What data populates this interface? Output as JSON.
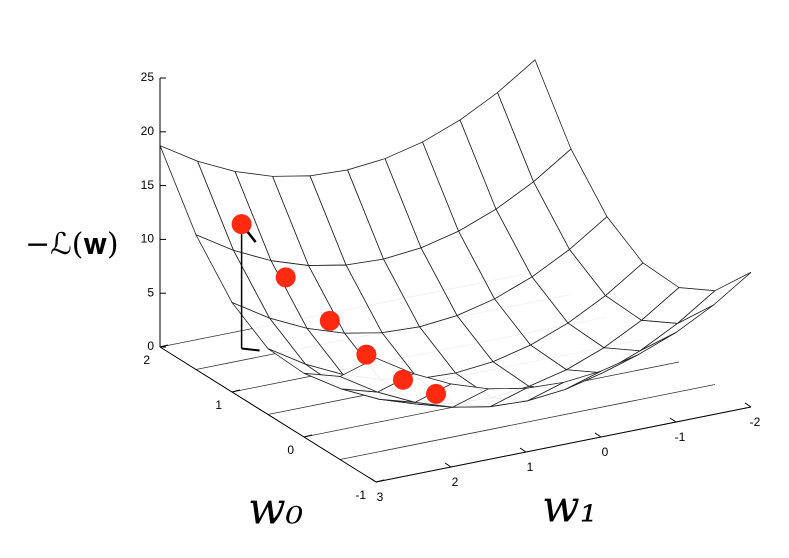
{
  "chart_data": {
    "type": "surface3d",
    "zlabel": "−ℒ(𝐰)",
    "w0label": "w₀",
    "w1label": "w₁",
    "zlim": [
      0,
      25
    ],
    "zticks": [
      0,
      5,
      10,
      15,
      20,
      25
    ],
    "w0lim": [
      -1,
      2
    ],
    "w0ticks": [
      -1,
      0,
      1,
      2
    ],
    "w1lim": [
      -2,
      3
    ],
    "w1ticks": [
      -2,
      -1,
      0,
      1,
      2,
      3
    ],
    "surface": {
      "w0": [
        -1,
        -0.5,
        0,
        0.5,
        1,
        1.5,
        2
      ],
      "w1": [
        -2,
        -1.5,
        -1,
        -0.5,
        0,
        0.5,
        1,
        1.5,
        2,
        2.5,
        3
      ],
      "z": [
        [
          12.52,
          10.17,
          8.32,
          6.97,
          6.12,
          5.77,
          5.92,
          6.57,
          7.72,
          9.37,
          11.52
        ],
        [
          8.72,
          6.37,
          4.52,
          3.17,
          2.32,
          1.97,
          2.12,
          2.77,
          3.92,
          5.57,
          7.72
        ],
        [
          6.92,
          4.57,
          2.72,
          1.37,
          0.52,
          0.17,
          0.32,
          0.97,
          2.12,
          3.77,
          5.92
        ],
        [
          7.12,
          4.77,
          2.92,
          1.57,
          0.72,
          0.37,
          0.52,
          1.17,
          2.32,
          3.97,
          6.12
        ],
        [
          9.32,
          6.97,
          5.12,
          3.77,
          2.92,
          2.57,
          2.72,
          3.37,
          4.52,
          6.17,
          8.32
        ],
        [
          13.52,
          11.17,
          9.32,
          7.97,
          7.12,
          6.77,
          6.92,
          7.57,
          8.72,
          10.37,
          12.52
        ],
        [
          19.72,
          17.37,
          15.52,
          14.17,
          13.32,
          12.97,
          13.12,
          13.77,
          14.92,
          16.57,
          18.72
        ]
      ]
    },
    "points": {
      "color": "#ff2a10",
      "w0": [
        1.7,
        1.4,
        1.1,
        0.8,
        0.5,
        0.25
      ],
      "w1": [
        2.2,
        1.9,
        1.6,
        1.4,
        1.2,
        1.0
      ],
      "z": [
        11.56,
        7.45,
        4.24,
        2.08,
        0.72,
        0.17
      ]
    }
  }
}
